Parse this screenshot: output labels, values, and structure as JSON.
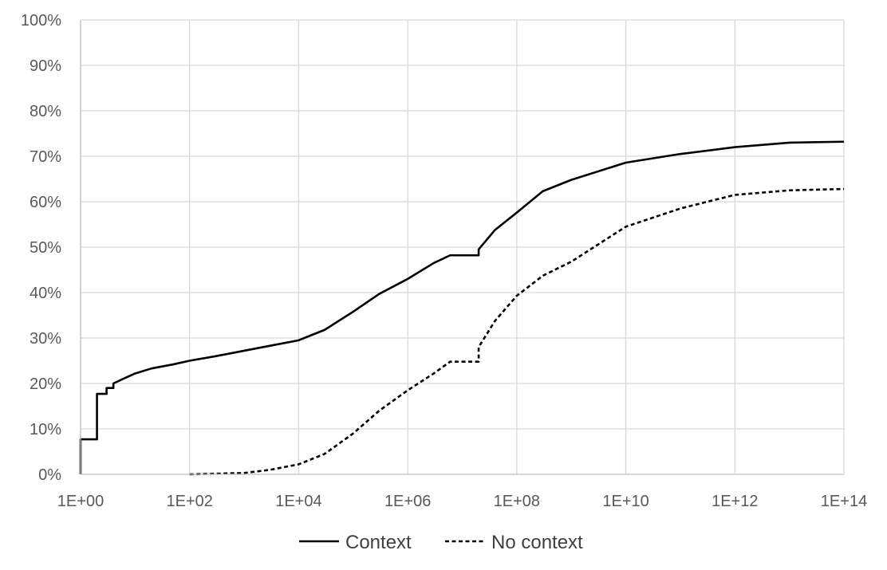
{
  "chart_data": {
    "type": "line",
    "title": "",
    "xlabel": "",
    "ylabel": "",
    "x_scale": "log10",
    "xlim": [
      1,
      100000000000000.0
    ],
    "ylim": [
      0,
      1
    ],
    "grid": true,
    "legend_position": "bottom",
    "x_tick_labels": [
      "1E+00",
      "1E+02",
      "1E+04",
      "1E+06",
      "1E+08",
      "1E+10",
      "1E+12",
      "1E+14"
    ],
    "y_tick_labels": [
      "0%",
      "10%",
      "20%",
      "30%",
      "40%",
      "50%",
      "60%",
      "70%",
      "80%",
      "90%",
      "100%"
    ],
    "series": [
      {
        "name": "Context",
        "line_style": "solid",
        "color": "#000000",
        "x": [
          1,
          1,
          2,
          2,
          3,
          3,
          4,
          4,
          6,
          10.0,
          20.0,
          50.0,
          100.0,
          300.0,
          1000.0,
          3000.0,
          10000.0,
          30000.0,
          100000.0,
          300000.0,
          1000000.0,
          3000000.0,
          6000000.0,
          10000000.0,
          20000000.0,
          20000000.0,
          40000000.0,
          100000000.0,
          300000000.0,
          1000000000.0,
          10000000000.0,
          100000000000.0,
          1000000000000.0,
          10000000000000.0,
          100000000000000.0
        ],
        "y": [
          0,
          0.077,
          0.077,
          0.177,
          0.177,
          0.19,
          0.19,
          0.2,
          0.21,
          0.222,
          0.233,
          0.242,
          0.25,
          0.26,
          0.272,
          0.283,
          0.295,
          0.318,
          0.358,
          0.397,
          0.43,
          0.465,
          0.482,
          0.482,
          0.482,
          0.495,
          0.538,
          0.576,
          0.623,
          0.648,
          0.686,
          0.705,
          0.72,
          0.73,
          0.732
        ]
      },
      {
        "name": "No context",
        "line_style": "dashed",
        "color": "#000000",
        "x": [
          100.0,
          1000.0,
          3000.0,
          10000.0,
          30000.0,
          100000.0,
          300000.0,
          1000000.0,
          3000000.0,
          6000000.0,
          20000000.0,
          20000000.0,
          40000000.0,
          100000000.0,
          300000000.0,
          1000000000.0,
          10000000000.0,
          100000000000.0,
          1000000000000.0,
          10000000000000.0,
          100000000000000.0
        ],
        "y": [
          0,
          0.003,
          0.01,
          0.022,
          0.045,
          0.09,
          0.14,
          0.185,
          0.222,
          0.248,
          0.248,
          0.28,
          0.338,
          0.393,
          0.437,
          0.468,
          0.545,
          0.585,
          0.615,
          0.625,
          0.628
        ]
      }
    ]
  }
}
